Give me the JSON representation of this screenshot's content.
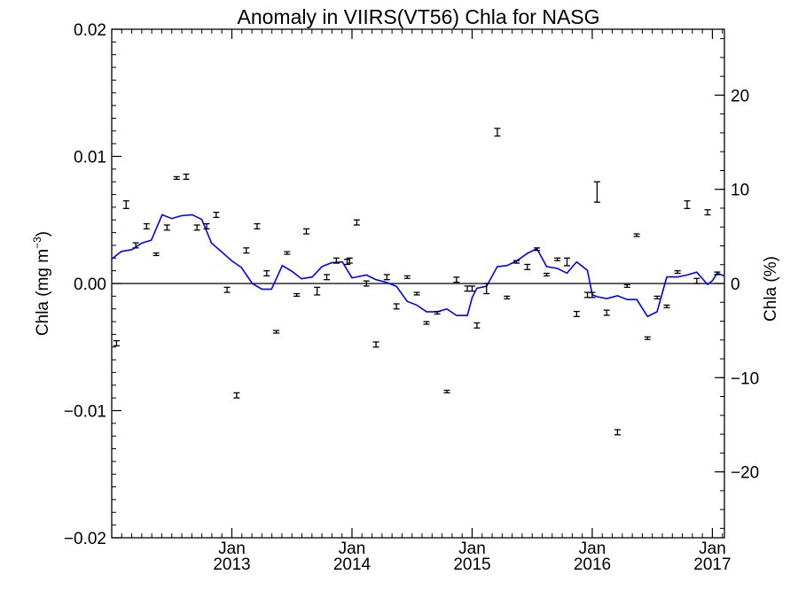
{
  "chart_data": {
    "type": "line",
    "title": "Anomaly in VIIRS(VT56) Chla for NASG",
    "ylabel_left": "Chla (mg m",
    "ylabel_left_sup": "−3",
    "ylabel_left_close": ")",
    "ylabel_right": "Chla (%)",
    "ylim_left": [
      -0.02,
      0.02
    ],
    "ylim_right": [
      -27,
      27
    ],
    "xlim": [
      2012.0,
      2017.1
    ],
    "left_ticks": [
      {
        "value": 0.02,
        "label": "0.02"
      },
      {
        "value": 0.01,
        "label": "0.01"
      },
      {
        "value": 0.0,
        "label": "0.00"
      },
      {
        "value": -0.01,
        "label": "−0.01"
      },
      {
        "value": -0.02,
        "label": "−0.02"
      }
    ],
    "right_ticks": [
      {
        "value": 20,
        "label": "20"
      },
      {
        "value": 10,
        "label": "10"
      },
      {
        "value": 0,
        "label": "0"
      },
      {
        "value": -10,
        "label": "−10"
      },
      {
        "value": -20,
        "label": "−20"
      }
    ],
    "x_ticks": [
      {
        "value": 2013.0,
        "month": "Jan",
        "year": "2013"
      },
      {
        "value": 2014.0,
        "month": "Jan",
        "year": "2014"
      },
      {
        "value": 2015.0,
        "month": "Jan",
        "year": "2015"
      },
      {
        "value": 2016.0,
        "month": "Jan",
        "year": "2016"
      },
      {
        "value": 2017.0,
        "month": "Jan",
        "year": "2017"
      }
    ],
    "zero_line": true,
    "series": [
      {
        "kind": "line",
        "axis": "right",
        "color": "#0000ff",
        "x": [
          2012.0,
          2012.08,
          2012.17,
          2012.25,
          2012.33,
          2012.42,
          2012.5,
          2012.58,
          2012.67,
          2012.75,
          2012.83,
          2012.92,
          2013.0,
          2013.08,
          2013.17,
          2013.25,
          2013.33,
          2013.42,
          2013.5,
          2013.58,
          2013.67,
          2013.75,
          2013.83,
          2013.92,
          2014.0,
          2014.04,
          2014.12,
          2014.2,
          2014.29,
          2014.37,
          2014.46,
          2014.54,
          2014.62,
          2014.71,
          2014.79,
          2014.87,
          2014.96,
          2015.0,
          2015.04,
          2015.12,
          2015.21,
          2015.29,
          2015.37,
          2015.46,
          2015.54,
          2015.62,
          2015.71,
          2015.79,
          2015.87,
          2015.96,
          2016.0,
          2016.04,
          2016.12,
          2016.21,
          2016.29,
          2016.37,
          2016.46,
          2016.54,
          2016.62,
          2016.71,
          2016.79,
          2016.87,
          2016.96,
          2017.0,
          2017.04,
          2017.1
        ],
        "values": [
          2.6,
          3.4,
          3.6,
          4.3,
          4.6,
          7.3,
          6.9,
          7.2,
          7.3,
          6.8,
          4.3,
          3.3,
          2.4,
          1.7,
          0.0,
          -0.6,
          -0.6,
          1.9,
          1.3,
          0.5,
          0.7,
          1.8,
          2.2,
          2.3,
          0.6,
          0.7,
          0.9,
          0.4,
          0.1,
          -0.3,
          -1.9,
          -2.3,
          -3.0,
          -3.0,
          -2.7,
          -3.4,
          -3.4,
          -1.5,
          -0.5,
          -0.3,
          1.8,
          1.9,
          2.4,
          3.2,
          3.7,
          1.8,
          1.6,
          1.1,
          2.3,
          1.4,
          -1.2,
          -1.4,
          -1.6,
          -1.3,
          -1.7,
          -1.7,
          -3.5,
          -3.0,
          0.7,
          0.7,
          0.9,
          1.2,
          -0.1,
          0.3,
          1.1,
          0.8
        ]
      },
      {
        "kind": "errorbar",
        "axis": "left",
        "color": "#000000",
        "x": [
          2012.04,
          2012.12,
          2012.2,
          2012.29,
          2012.37,
          2012.46,
          2012.54,
          2012.62,
          2012.71,
          2012.79,
          2012.87,
          2012.96,
          2013.04,
          2013.12,
          2013.21,
          2013.29,
          2013.37,
          2013.46,
          2013.54,
          2013.62,
          2013.71,
          2013.79,
          2013.87,
          2013.96,
          2013.98,
          2014.04,
          2014.12,
          2014.2,
          2014.29,
          2014.37,
          2014.46,
          2014.54,
          2014.62,
          2014.71,
          2014.79,
          2014.87,
          2014.96,
          2015.0,
          2015.04,
          2015.12,
          2015.21,
          2015.29,
          2015.37,
          2015.46,
          2015.54,
          2015.62,
          2015.71,
          2015.79,
          2015.87,
          2015.96,
          2016.0,
          2016.04,
          2016.12,
          2016.21,
          2016.29,
          2016.37,
          2016.46,
          2016.54,
          2016.62,
          2016.71,
          2016.79,
          2016.87,
          2016.96,
          2017.04
        ],
        "values": [
          -0.0047,
          0.0062,
          0.003,
          0.0045,
          0.0023,
          0.0044,
          0.0083,
          0.0084,
          0.0044,
          0.0045,
          0.0054,
          -0.0005,
          -0.0088,
          0.0026,
          0.0045,
          0.0008,
          -0.0038,
          0.0024,
          -0.0009,
          0.0041,
          -0.0006,
          0.0005,
          0.0018,
          0.0017,
          0.0018,
          0.0048,
          0.0,
          -0.0048,
          0.0005,
          -0.0018,
          0.0005,
          -0.0008,
          -0.0031,
          -0.0023,
          -0.0085,
          0.0003,
          -0.0004,
          -0.0004,
          -0.0033,
          -0.0004,
          0.0119,
          -0.0011,
          0.0017,
          0.0013,
          0.0027,
          0.0007,
          0.0019,
          0.0017,
          -0.0024,
          -0.0009,
          -0.0009,
          0.0072,
          -0.0023,
          -0.0117,
          -0.0002,
          0.0038,
          -0.0043,
          -0.0011,
          -0.0018,
          0.0009,
          0.0062,
          0.0002,
          0.0056,
          0.0008
        ],
        "err": [
          0.0002,
          0.0003,
          0.0002,
          0.0002,
          0.0001,
          0.0002,
          0.0001,
          0.0002,
          0.0002,
          0.0002,
          0.0002,
          0.0002,
          0.0002,
          0.0002,
          0.0002,
          0.0002,
          0.0001,
          0.0001,
          0.0001,
          0.0002,
          0.0003,
          0.0002,
          0.0002,
          0.0002,
          0.0002,
          0.0002,
          0.0002,
          0.0002,
          0.0002,
          0.0002,
          0.0001,
          0.0001,
          0.0001,
          0.0001,
          0.0001,
          0.0002,
          0.0002,
          0.0002,
          0.0002,
          0.0004,
          0.0003,
          0.0001,
          0.0001,
          0.0002,
          0.0001,
          0.0001,
          0.0001,
          0.0003,
          0.0002,
          0.0002,
          0.0002,
          0.0008,
          0.0002,
          0.0002,
          0.0001,
          0.0001,
          0.0001,
          0.0001,
          0.0001,
          0.0001,
          0.0003,
          0.0002,
          0.0002,
          0.0001
        ]
      }
    ]
  }
}
